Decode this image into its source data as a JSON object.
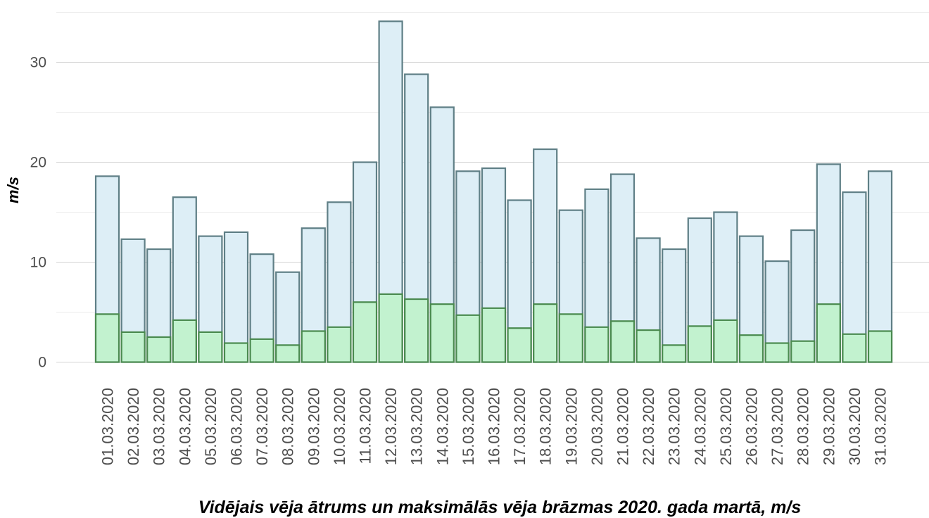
{
  "chart_data": {
    "type": "bar",
    "xlabel": "Vidējais vēja ātrums un maksimālās vēja brāzmas 2020. gada martā, m/s",
    "ylabel": "m/s",
    "ylim": [
      0,
      35
    ],
    "yticks": [
      "0",
      "10",
      "20",
      "30"
    ],
    "grid": true,
    "colors": {
      "gust_fill": "#ddeef6",
      "gust_stroke": "#5f7f86",
      "mean_fill": "#c2f2cf",
      "mean_stroke": "#4a8a4f",
      "grid_major": "#d4d4d4",
      "grid_minor": "#ebebeb"
    },
    "categories": [
      "01.03.2020",
      "02.03.2020",
      "03.03.2020",
      "04.03.2020",
      "05.03.2020",
      "06.03.2020",
      "07.03.2020",
      "08.03.2020",
      "09.03.2020",
      "10.03.2020",
      "11.03.2020",
      "12.03.2020",
      "13.03.2020",
      "14.03.2020",
      "15.03.2020",
      "16.03.2020",
      "17.03.2020",
      "18.03.2020",
      "19.03.2020",
      "20.03.2020",
      "21.03.2020",
      "22.03.2020",
      "23.03.2020",
      "24.03.2020",
      "25.03.2020",
      "26.03.2020",
      "27.03.2020",
      "28.03.2020",
      "29.03.2020",
      "30.03.2020",
      "31.03.2020"
    ],
    "series": [
      {
        "values": [
          18.6,
          12.3,
          11.3,
          16.5,
          12.6,
          13.0,
          10.8,
          9.0,
          13.4,
          16.0,
          20.0,
          34.1,
          28.8,
          25.5,
          19.1,
          19.4,
          16.2,
          21.3,
          15.2,
          17.3,
          18.8,
          12.4,
          11.3,
          14.4,
          15.0,
          12.6,
          10.1,
          13.2,
          19.8,
          17.0,
          19.1
        ]
      },
      {
        "values": [
          4.8,
          3.0,
          2.5,
          4.2,
          3.0,
          1.9,
          2.3,
          1.7,
          3.1,
          3.5,
          6.0,
          6.8,
          6.3,
          5.8,
          4.7,
          5.4,
          3.4,
          5.8,
          4.8,
          3.5,
          4.1,
          3.2,
          1.7,
          3.6,
          4.2,
          2.7,
          1.9,
          2.1,
          5.8,
          2.8,
          3.1
        ]
      }
    ]
  }
}
